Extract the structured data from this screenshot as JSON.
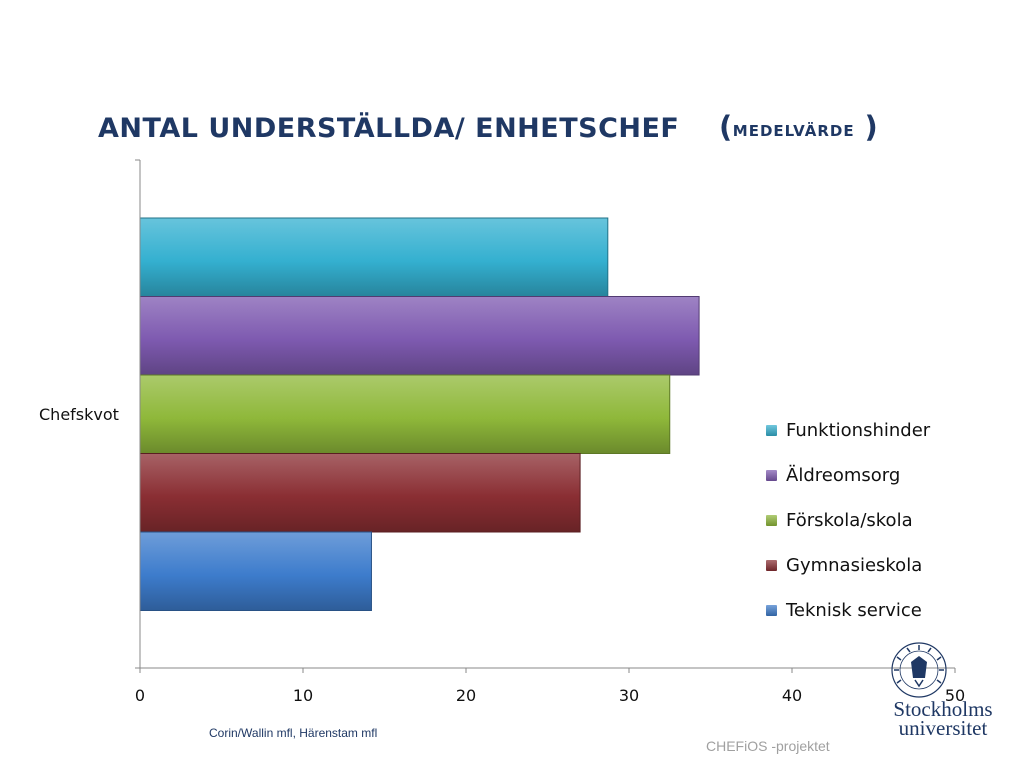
{
  "title": {
    "main": "ANTAL UNDERSTÄLLDA/ ENHETSCHEF",
    "open_paren": "(",
    "sub": "MEDELVÄRDE",
    "close_paren": ")"
  },
  "chart_data": {
    "type": "bar",
    "orientation": "horizontal",
    "category_label": "Chefskvot",
    "categories": [
      "Chefskvot"
    ],
    "series": [
      {
        "name": "Funktionshinder",
        "value": 28.7,
        "color": "#34b0d0"
      },
      {
        "name": "Äldreomsorg",
        "value": 34.3,
        "color": "#7e5ab0"
      },
      {
        "name": "Förskola/skola",
        "value": 32.5,
        "color": "#8fb83a"
      },
      {
        "name": "Gymnasieskola",
        "value": 27.0,
        "color": "#8a2e33"
      },
      {
        "name": "Teknisk service",
        "value": 14.2,
        "color": "#3d7ccc"
      }
    ],
    "xlim": [
      0,
      50
    ],
    "xticks": [
      "0",
      "10",
      "20",
      "30",
      "40",
      "50"
    ],
    "legend_position": "right",
    "grid": false
  },
  "legend_order": [
    "Funktionshinder",
    "Äldreomsorg",
    "Förskola/skola",
    "Gymnasieskola",
    "Teknisk service"
  ],
  "footer": {
    "source": "Corin/Wallin mfl, Härenstam mfl",
    "project": "CHEFiOS -projektet"
  },
  "logo": {
    "name": "Stockholms universitet",
    "line1": "Stockholms",
    "line2": "universitet",
    "seal_icon": "stockholm-university-seal"
  }
}
